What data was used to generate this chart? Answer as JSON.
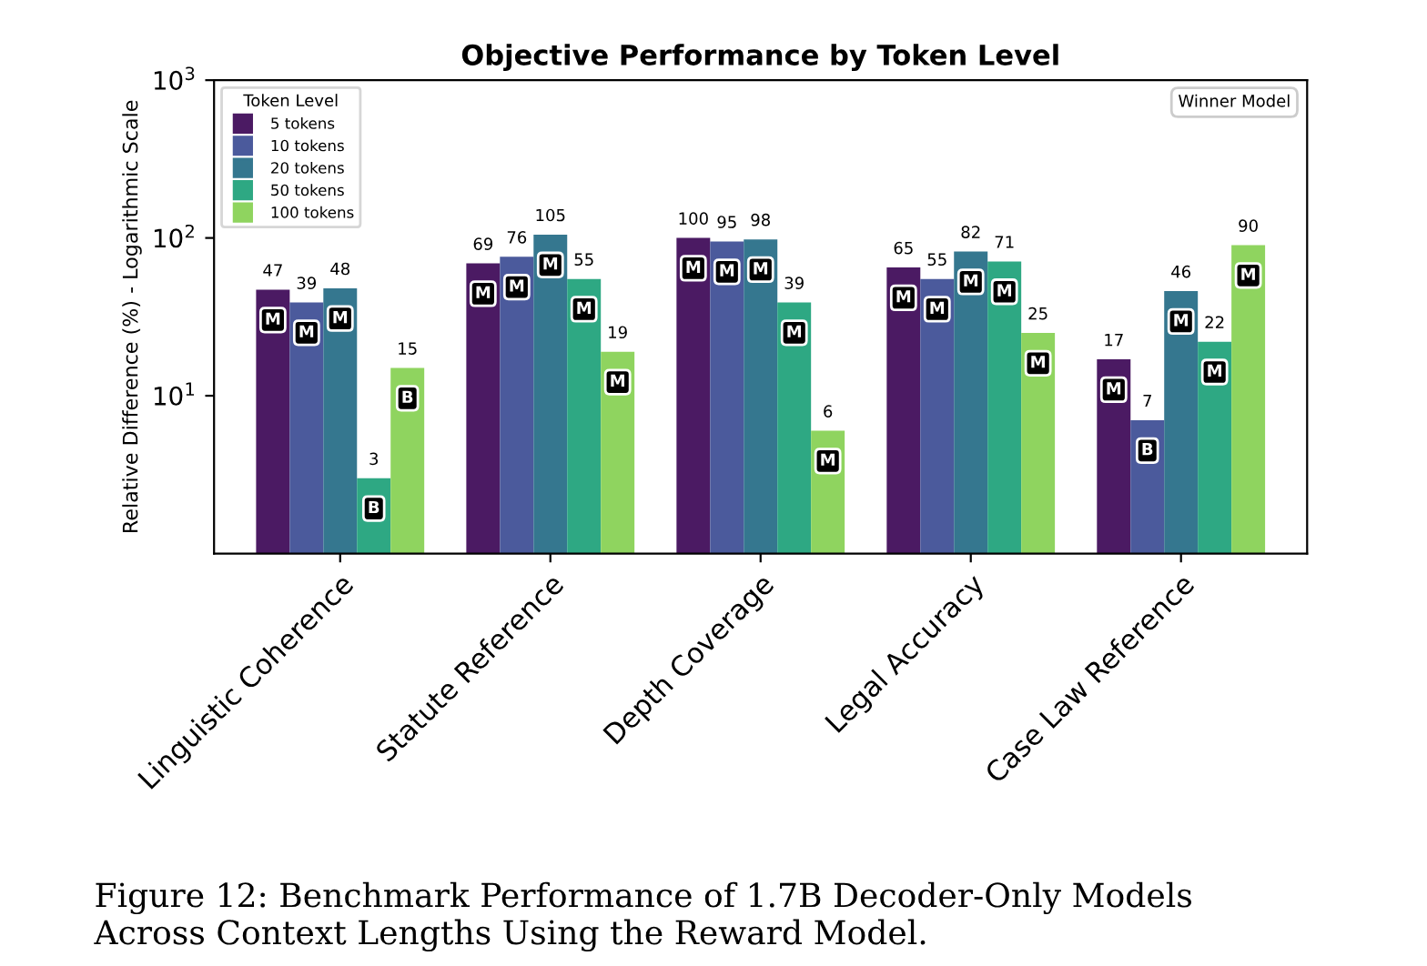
{
  "chart_data": {
    "type": "bar",
    "title": "Objective Performance by Token Level",
    "ylabel": "Relative Difference (%) - Logarithmic Scale",
    "categories": [
      "Linguistic Coherence",
      "Statute Reference",
      "Depth Coverage",
      "Legal Accuracy",
      "Case Law Reference"
    ],
    "series": [
      {
        "name": "5 tokens",
        "color": "#4b1a63",
        "values": [
          47,
          69,
          100,
          65,
          17
        ]
      },
      {
        "name": "10 tokens",
        "color": "#4b5a9c",
        "values": [
          39,
          76,
          95,
          55,
          7
        ]
      },
      {
        "name": "20 tokens",
        "color": "#35778f",
        "values": [
          48,
          105,
          98,
          82,
          46
        ]
      },
      {
        "name": "50 tokens",
        "color": "#2ea883",
        "values": [
          3,
          55,
          39,
          71,
          22
        ]
      },
      {
        "name": "100 tokens",
        "color": "#8fd45f",
        "values": [
          15,
          19,
          6,
          25,
          90
        ]
      }
    ],
    "data_labels": true,
    "log": true,
    "ylim": [
      1,
      1000
    ],
    "yticks": [
      {
        "value": 10,
        "label": "10$^{1}$"
      },
      {
        "value": 100,
        "label": "10$^{2}$"
      },
      {
        "value": 1000,
        "label": "10$^{3}$"
      }
    ],
    "legend": "top left",
    "legend_title": "Token Level",
    "grid": false,
    "annotations": [
      "M",
      "M",
      "M",
      "B",
      "B",
      "M",
      "M",
      "M",
      "M",
      "M",
      "M",
      "M",
      "M",
      "M",
      "M",
      "M",
      "M",
      "M",
      "M",
      "M",
      "M",
      "B",
      "M",
      "M",
      "M",
      "Winner Model",
      "Figure 12: Benchmark Performance of 1.7B Decoder-Only Models\nAcross Context Lengths Using the Reward Model."
    ]
  }
}
